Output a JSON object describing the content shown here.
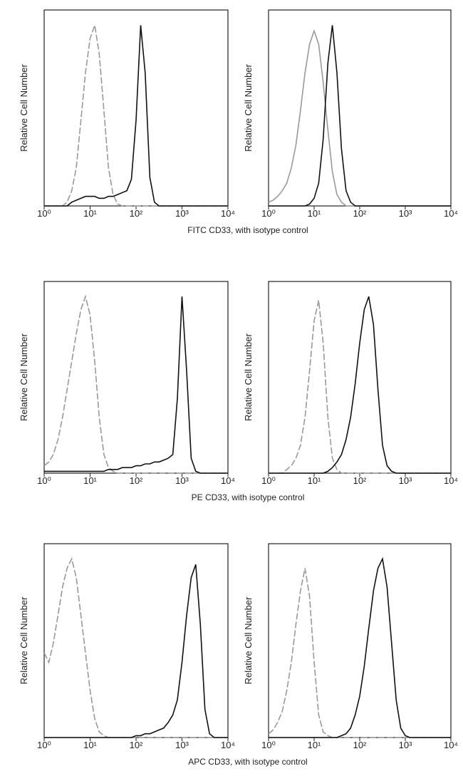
{
  "chart_data": [
    {
      "type": "line",
      "ylabel": "Relative Cell Number",
      "xscale": "log",
      "xlim": [
        1,
        10000
      ],
      "ylim": [
        0,
        100
      ],
      "xticks": [
        {
          "value": 1,
          "label": "10⁰"
        },
        {
          "value": 10,
          "label": "10¹"
        },
        {
          "value": 100,
          "label": "10²"
        },
        {
          "value": 1000,
          "label": "10³"
        },
        {
          "value": 10000,
          "label": "10⁴"
        }
      ],
      "x": [
        1,
        1.26,
        1.58,
        2,
        2.51,
        3.16,
        3.98,
        5.01,
        6.31,
        7.94,
        10,
        12.6,
        15.8,
        20,
        25.1,
        31.6,
        39.8,
        50.1,
        63.1,
        79.4,
        100,
        126,
        158,
        200,
        251,
        316,
        398,
        501,
        631,
        794,
        1000,
        1259,
        1585,
        1995,
        2512,
        3162,
        3981,
        5012,
        6310,
        7943,
        10000
      ],
      "series": [
        {
          "color": "#999999",
          "dashed": true,
          "values": [
            0,
            0,
            0,
            0,
            0,
            2,
            8,
            20,
            45,
            70,
            88,
            95,
            80,
            50,
            20,
            6,
            1,
            0,
            0,
            0,
            0,
            0,
            0,
            0,
            0,
            0,
            0,
            0,
            0,
            0,
            0,
            0,
            0,
            0,
            0,
            0,
            0,
            0,
            0,
            0,
            0
          ]
        },
        {
          "color": "#111111",
          "dashed": false,
          "values": [
            0,
            0,
            0,
            0,
            0,
            0,
            2,
            3,
            4,
            5,
            5,
            5,
            4,
            4,
            5,
            5,
            6,
            7,
            8,
            14,
            45,
            95,
            70,
            15,
            2,
            0,
            0,
            0,
            0,
            0,
            0,
            0,
            0,
            0,
            0,
            0,
            0,
            0,
            0,
            0,
            0
          ]
        }
      ]
    },
    {
      "type": "line",
      "ylabel": "Relative Cell Number",
      "xscale": "log",
      "xlim": [
        1,
        10000
      ],
      "ylim": [
        0,
        100
      ],
      "xticks": [
        {
          "value": 1,
          "label": "10⁰"
        },
        {
          "value": 10,
          "label": "10¹"
        },
        {
          "value": 100,
          "label": "10²"
        },
        {
          "value": 1000,
          "label": "10³"
        },
        {
          "value": 10000,
          "label": "10⁴"
        }
      ],
      "x": [
        1,
        1.26,
        1.58,
        2,
        2.51,
        3.16,
        3.98,
        5.01,
        6.31,
        7.94,
        10,
        12.6,
        15.8,
        20,
        25.1,
        31.6,
        39.8,
        50.1,
        63.1,
        79.4,
        100,
        126,
        158,
        200,
        251,
        316,
        398,
        501,
        631,
        794,
        1000,
        1259,
        1585,
        1995,
        2512,
        3162,
        3981,
        5012,
        6310,
        7943,
        10000
      ],
      "series": [
        {
          "color": "#999999",
          "dashed": false,
          "values": [
            2,
            3,
            5,
            8,
            12,
            20,
            32,
            50,
            70,
            85,
            92,
            85,
            65,
            40,
            18,
            6,
            2,
            0,
            0,
            0,
            0,
            0,
            0,
            0,
            0,
            0,
            0,
            0,
            0,
            0,
            0,
            0,
            0,
            0,
            0,
            0,
            0,
            0,
            0,
            0,
            0
          ]
        },
        {
          "color": "#111111",
          "dashed": false,
          "values": [
            0,
            0,
            0,
            0,
            0,
            0,
            0,
            0,
            0,
            1,
            4,
            12,
            35,
            75,
            95,
            70,
            30,
            8,
            2,
            0,
            0,
            0,
            0,
            0,
            0,
            0,
            0,
            0,
            0,
            0,
            0,
            0,
            0,
            0,
            0,
            0,
            0,
            0,
            0,
            0,
            0
          ]
        }
      ]
    },
    {
      "type": "line",
      "ylabel": "Relative Cell Number",
      "xscale": "log",
      "xlim": [
        1,
        10000
      ],
      "ylim": [
        0,
        100
      ],
      "xticks": [
        {
          "value": 1,
          "label": "10⁰"
        },
        {
          "value": 10,
          "label": "10¹"
        },
        {
          "value": 100,
          "label": "10²"
        },
        {
          "value": 1000,
          "label": "10³"
        },
        {
          "value": 10000,
          "label": "10⁴"
        }
      ],
      "x": [
        1,
        1.26,
        1.58,
        2,
        2.51,
        3.16,
        3.98,
        5.01,
        6.31,
        7.94,
        10,
        12.6,
        15.8,
        20,
        25.1,
        31.6,
        39.8,
        50.1,
        63.1,
        79.4,
        100,
        126,
        158,
        200,
        251,
        316,
        398,
        501,
        631,
        794,
        1000,
        1259,
        1585,
        1995,
        2512,
        3162,
        3981,
        5012,
        6310,
        7943,
        10000
      ],
      "series": [
        {
          "color": "#999999",
          "dashed": true,
          "values": [
            4,
            6,
            10,
            18,
            30,
            45,
            60,
            75,
            88,
            95,
            85,
            60,
            30,
            10,
            3,
            1,
            0,
            0,
            0,
            0,
            0,
            0,
            0,
            0,
            0,
            0,
            0,
            0,
            0,
            0,
            0,
            0,
            0,
            0,
            0,
            0,
            0,
            0,
            0,
            0,
            0
          ]
        },
        {
          "color": "#111111",
          "dashed": false,
          "values": [
            1,
            1,
            1,
            1,
            1,
            1,
            1,
            1,
            1,
            1,
            1,
            1,
            1,
            1,
            2,
            2,
            2,
            3,
            3,
            3,
            4,
            4,
            5,
            5,
            6,
            6,
            7,
            8,
            10,
            40,
            95,
            55,
            8,
            1,
            0,
            0,
            0,
            0,
            0,
            0,
            0
          ]
        }
      ]
    },
    {
      "type": "line",
      "ylabel": "Relative Cell Number",
      "xscale": "log",
      "xlim": [
        1,
        10000
      ],
      "ylim": [
        0,
        100
      ],
      "xticks": [
        {
          "value": 1,
          "label": "10⁰"
        },
        {
          "value": 10,
          "label": "10¹"
        },
        {
          "value": 100,
          "label": "10²"
        },
        {
          "value": 1000,
          "label": "10³"
        },
        {
          "value": 10000,
          "label": "10⁴"
        }
      ],
      "x": [
        1,
        1.26,
        1.58,
        2,
        2.51,
        3.16,
        3.98,
        5.01,
        6.31,
        7.94,
        10,
        12.6,
        15.8,
        20,
        25.1,
        31.6,
        39.8,
        50.1,
        63.1,
        79.4,
        100,
        126,
        158,
        200,
        251,
        316,
        398,
        501,
        631,
        794,
        1000,
        1259,
        1585,
        1995,
        2512,
        3162,
        3981,
        5012,
        6310,
        7943,
        10000
      ],
      "series": [
        {
          "color": "#999999",
          "dashed": true,
          "values": [
            0,
            0,
            0,
            0,
            2,
            4,
            8,
            15,
            30,
            55,
            82,
            93,
            70,
            30,
            8,
            2,
            0,
            0,
            0,
            0,
            0,
            0,
            0,
            0,
            0,
            0,
            0,
            0,
            0,
            0,
            0,
            0,
            0,
            0,
            0,
            0,
            0,
            0,
            0,
            0,
            0
          ]
        },
        {
          "color": "#111111",
          "dashed": false,
          "values": [
            0,
            0,
            0,
            0,
            0,
            0,
            0,
            0,
            0,
            0,
            0,
            0,
            0,
            1,
            3,
            6,
            10,
            18,
            30,
            48,
            70,
            88,
            95,
            80,
            45,
            15,
            4,
            1,
            0,
            0,
            0,
            0,
            0,
            0,
            0,
            0,
            0,
            0,
            0,
            0,
            0
          ]
        }
      ]
    },
    {
      "type": "line",
      "ylabel": "Relative Cell Number",
      "xscale": "log",
      "xlim": [
        1,
        10000
      ],
      "ylim": [
        0,
        100
      ],
      "xticks": [
        {
          "value": 1,
          "label": "10⁰"
        },
        {
          "value": 10,
          "label": "10¹"
        },
        {
          "value": 100,
          "label": "10²"
        },
        {
          "value": 1000,
          "label": "10³"
        },
        {
          "value": 10000,
          "label": "10⁴"
        }
      ],
      "x": [
        1,
        1.26,
        1.58,
        2,
        2.51,
        3.16,
        3.98,
        5.01,
        6.31,
        7.94,
        10,
        12.6,
        15.8,
        20,
        25.1,
        31.6,
        39.8,
        50.1,
        63.1,
        79.4,
        100,
        126,
        158,
        200,
        251,
        316,
        398,
        501,
        631,
        794,
        1000,
        1259,
        1585,
        1995,
        2512,
        3162,
        3981,
        5012,
        6310,
        7943,
        10000
      ],
      "series": [
        {
          "color": "#999999",
          "dashed": true,
          "values": [
            45,
            40,
            50,
            65,
            80,
            90,
            95,
            85,
            65,
            45,
            25,
            10,
            3,
            1,
            0,
            0,
            0,
            0,
            0,
            0,
            0,
            0,
            0,
            0,
            0,
            0,
            0,
            0,
            0,
            0,
            0,
            0,
            0,
            0,
            0,
            0,
            0,
            0,
            0,
            0,
            0
          ]
        },
        {
          "color": "#111111",
          "dashed": false,
          "values": [
            0,
            0,
            0,
            0,
            0,
            0,
            0,
            0,
            0,
            0,
            0,
            0,
            0,
            0,
            0,
            0,
            0,
            0,
            0,
            0,
            1,
            1,
            2,
            2,
            3,
            4,
            5,
            8,
            12,
            20,
            40,
            65,
            85,
            92,
            60,
            15,
            2,
            0,
            0,
            0,
            0
          ]
        }
      ]
    },
    {
      "type": "line",
      "ylabel": "Relative Cell Number",
      "xscale": "log",
      "xlim": [
        1,
        10000
      ],
      "ylim": [
        0,
        100
      ],
      "xticks": [
        {
          "value": 1,
          "label": "10⁰"
        },
        {
          "value": 10,
          "label": "10¹"
        },
        {
          "value": 100,
          "label": "10²"
        },
        {
          "value": 1000,
          "label": "10³"
        },
        {
          "value": 10000,
          "label": "10⁴"
        }
      ],
      "x": [
        1,
        1.26,
        1.58,
        2,
        2.51,
        3.16,
        3.98,
        5.01,
        6.31,
        7.94,
        10,
        12.6,
        15.8,
        20,
        25.1,
        31.6,
        39.8,
        50.1,
        63.1,
        79.4,
        100,
        126,
        158,
        200,
        251,
        316,
        398,
        501,
        631,
        794,
        1000,
        1259,
        1585,
        1995,
        2512,
        3162,
        3981,
        5012,
        6310,
        7943,
        10000
      ],
      "series": [
        {
          "color": "#999999",
          "dashed": true,
          "values": [
            2,
            4,
            8,
            14,
            25,
            40,
            60,
            78,
            90,
            75,
            40,
            12,
            3,
            1,
            0,
            0,
            0,
            0,
            0,
            0,
            0,
            0,
            0,
            0,
            0,
            0,
            0,
            0,
            0,
            0,
            0,
            0,
            0,
            0,
            0,
            0,
            0,
            0,
            0,
            0,
            0
          ]
        },
        {
          "color": "#111111",
          "dashed": false,
          "values": [
            0,
            0,
            0,
            0,
            0,
            0,
            0,
            0,
            0,
            0,
            0,
            0,
            0,
            0,
            0,
            0,
            1,
            2,
            5,
            12,
            22,
            38,
            58,
            78,
            90,
            95,
            80,
            50,
            20,
            5,
            1,
            0,
            0,
            0,
            0,
            0,
            0,
            0,
            0,
            0,
            0
          ]
        }
      ]
    }
  ],
  "row_captions": [
    "FITC CD33, with isotype control",
    "PE CD33, with isotype control",
    "APC CD33, with isotype control"
  ]
}
